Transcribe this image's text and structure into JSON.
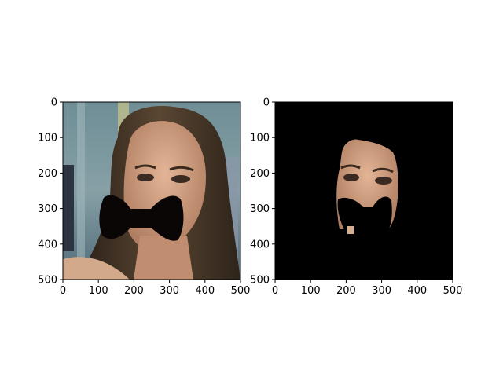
{
  "figure": {
    "panels": [
      {
        "name": "left-panel",
        "description_tag": "portrait photo with a black bow-tie shaped mask over the mouth",
        "x_ticks": [
          "0",
          "100",
          "200",
          "300",
          "400",
          "500"
        ],
        "y_ticks": [
          "0",
          "100",
          "200",
          "300",
          "400",
          "500"
        ]
      },
      {
        "name": "right-panel",
        "description_tag": "segmented face region on black background with masked mouth area",
        "x_ticks": [
          "0",
          "100",
          "200",
          "300",
          "400",
          "500"
        ],
        "y_ticks": [
          "0",
          "100",
          "200",
          "300",
          "400",
          "500"
        ]
      }
    ],
    "colors": {
      "mask": "#0b0606",
      "background_black": "#000000",
      "hair": "#3a2e22",
      "skin": "#c99a7c",
      "backdrop": "#7f98a0"
    }
  }
}
